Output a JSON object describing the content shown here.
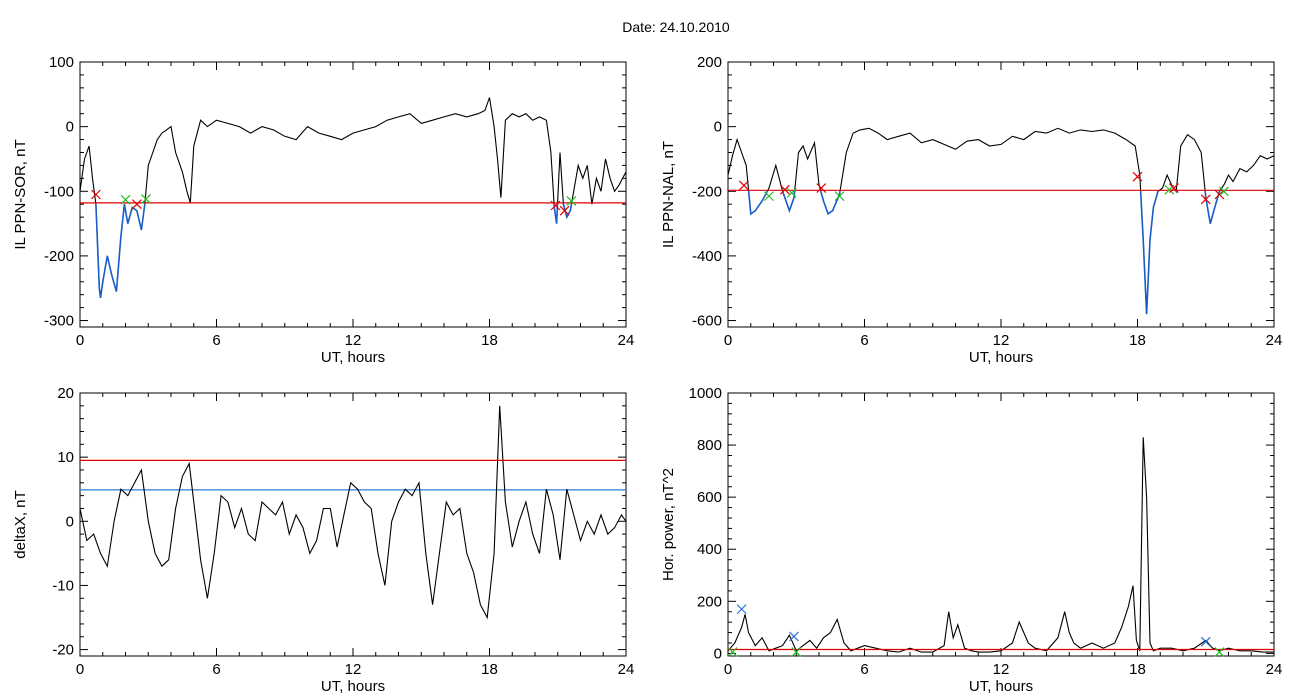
{
  "figure": {
    "title": "Date:  24.10.2010"
  },
  "colors": {
    "trace": "#000000",
    "below_threshold": "#1a5fc8",
    "threshold": "#e00000",
    "secondary_threshold": "#2a7fd4",
    "marker_red": "#e00000",
    "marker_green": "#22bb22",
    "marker_blue": "#2a6fd0"
  },
  "chart_data": [
    {
      "type": "line",
      "ylabel": "IL PPN-SOR, nT",
      "xlabel": "UT, hours",
      "xlim": [
        0,
        24
      ],
      "ylim": [
        -310,
        100
      ],
      "xticks": [
        0,
        6,
        12,
        18,
        24
      ],
      "yticks": [
        100,
        0,
        -100,
        -200,
        -300
      ],
      "threshold": -118,
      "series": [
        {
          "x": [
            0,
            0.2,
            0.4,
            0.55,
            0.7,
            0.85,
            0.9,
            1.0,
            1.2,
            1.4,
            1.6,
            1.8,
            1.95,
            2.1,
            2.3,
            2.5,
            2.7,
            2.85,
            3.0,
            3.2,
            3.4,
            3.6,
            3.8,
            4.0,
            4.2,
            4.5,
            4.7,
            4.85,
            5.0,
            5.3,
            5.6,
            6.0,
            6.5,
            7,
            7.5,
            8,
            8.5,
            9,
            9.5,
            10,
            10.5,
            11,
            11.5,
            12,
            12.5,
            13,
            13.5,
            14,
            14.5,
            15,
            15.5,
            16,
            16.5,
            17,
            17.5,
            17.8,
            18.0,
            18.2,
            18.35,
            18.5,
            18.7,
            19.0,
            19.3,
            19.6,
            19.9,
            20.2,
            20.5,
            20.7,
            20.85,
            20.95,
            21.1,
            21.25,
            21.4,
            21.55,
            21.7,
            21.9,
            22.1,
            22.3,
            22.5,
            22.7,
            22.9,
            23.1,
            23.3,
            23.5,
            23.7,
            23.85,
            24.0
          ],
          "y": [
            -100,
            -50,
            -30,
            -80,
            -120,
            -250,
            -265,
            -240,
            -200,
            -230,
            -255,
            -170,
            -120,
            -150,
            -125,
            -130,
            -160,
            -120,
            -60,
            -40,
            -20,
            -10,
            -5,
            0,
            -40,
            -70,
            -100,
            -118,
            -30,
            10,
            0,
            10,
            5,
            0,
            -10,
            0,
            -5,
            -15,
            -20,
            0,
            -10,
            -15,
            -20,
            -10,
            -5,
            0,
            10,
            15,
            20,
            5,
            10,
            15,
            20,
            15,
            20,
            25,
            45,
            0,
            -50,
            -110,
            10,
            20,
            15,
            20,
            10,
            15,
            10,
            -40,
            -125,
            -150,
            -40,
            -120,
            -140,
            -130,
            -100,
            -60,
            -80,
            -60,
            -120,
            -80,
            -100,
            -50,
            -80,
            -100,
            -90,
            -80,
            -70
          ]
        }
      ],
      "markers": [
        {
          "x": 0.7,
          "y": -105,
          "kind": "red-x"
        },
        {
          "x": 2.0,
          "y": -113,
          "kind": "green-x"
        },
        {
          "x": 2.5,
          "y": -120,
          "kind": "red-x"
        },
        {
          "x": 2.9,
          "y": -112,
          "kind": "green-x"
        },
        {
          "x": 20.9,
          "y": -122,
          "kind": "red-x"
        },
        {
          "x": 21.3,
          "y": -130,
          "kind": "red-x"
        },
        {
          "x": 21.6,
          "y": -115,
          "kind": "green-x"
        }
      ]
    },
    {
      "type": "line",
      "ylabel": "IL PPN-NAL, nT",
      "xlabel": "UT, hours",
      "xlim": [
        0,
        24
      ],
      "ylim": [
        -620,
        200
      ],
      "xticks": [
        0,
        6,
        12,
        18,
        24
      ],
      "yticks": [
        200,
        0,
        -200,
        -400,
        -600
      ],
      "threshold": -197,
      "series": [
        {
          "x": [
            0,
            0.2,
            0.4,
            0.6,
            0.8,
            1.0,
            1.2,
            1.5,
            1.8,
            2.1,
            2.4,
            2.7,
            2.9,
            3.1,
            3.3,
            3.5,
            3.8,
            4.0,
            4.2,
            4.4,
            4.6,
            4.9,
            5.2,
            5.5,
            5.8,
            6.2,
            6.6,
            7,
            7.5,
            8,
            8.5,
            9,
            9.5,
            10,
            10.5,
            11,
            11.5,
            12,
            12.5,
            13,
            13.5,
            14,
            14.5,
            15,
            15.5,
            16,
            16.5,
            17,
            17.5,
            17.9,
            18.1,
            18.25,
            18.4,
            18.55,
            18.7,
            18.9,
            19.1,
            19.3,
            19.5,
            19.7,
            19.9,
            20.2,
            20.5,
            20.8,
            21.0,
            21.2,
            21.4,
            21.6,
            21.8,
            22.0,
            22.2,
            22.5,
            22.8,
            23.1,
            23.4,
            23.7,
            24.0
          ],
          "y": [
            -150,
            -90,
            -40,
            -80,
            -120,
            -270,
            -260,
            -230,
            -190,
            -120,
            -200,
            -260,
            -220,
            -80,
            -60,
            -100,
            -50,
            -180,
            -230,
            -270,
            -260,
            -210,
            -80,
            -20,
            -10,
            -5,
            -20,
            -40,
            -30,
            -20,
            -50,
            -40,
            -55,
            -70,
            -45,
            -40,
            -60,
            -55,
            -30,
            -40,
            -15,
            -20,
            -5,
            -20,
            -10,
            -15,
            -10,
            -20,
            -40,
            -60,
            -150,
            -350,
            -580,
            -350,
            -250,
            -200,
            -190,
            -150,
            -180,
            -200,
            -60,
            -25,
            -40,
            -80,
            -220,
            -300,
            -250,
            -200,
            -180,
            -150,
            -170,
            -130,
            -140,
            -120,
            -90,
            -100,
            -90
          ]
        }
      ],
      "markers": [
        {
          "x": 0.7,
          "y": -182,
          "kind": "red-x"
        },
        {
          "x": 1.8,
          "y": -215,
          "kind": "green-x"
        },
        {
          "x": 2.5,
          "y": -195,
          "kind": "red-x"
        },
        {
          "x": 2.8,
          "y": -205,
          "kind": "green-x"
        },
        {
          "x": 4.1,
          "y": -190,
          "kind": "red-x"
        },
        {
          "x": 4.9,
          "y": -215,
          "kind": "green-x"
        },
        {
          "x": 18.0,
          "y": -155,
          "kind": "red-x"
        },
        {
          "x": 19.4,
          "y": -195,
          "kind": "green-x"
        },
        {
          "x": 19.6,
          "y": -190,
          "kind": "red-x"
        },
        {
          "x": 21.0,
          "y": -225,
          "kind": "red-x"
        },
        {
          "x": 21.6,
          "y": -210,
          "kind": "red-x"
        },
        {
          "x": 21.8,
          "y": -200,
          "kind": "green-x"
        }
      ]
    },
    {
      "type": "line",
      "ylabel": "deltaX, nT",
      "xlabel": "UT, hours",
      "xlim": [
        0,
        24
      ],
      "ylim": [
        -21,
        20
      ],
      "xticks": [
        0,
        6,
        12,
        18,
        24
      ],
      "yticks": [
        20,
        10,
        0,
        -10,
        -20
      ],
      "threshold": 9.5,
      "secondary_threshold": 4.9,
      "series": [
        {
          "x": [
            0,
            0.3,
            0.6,
            0.9,
            1.2,
            1.5,
            1.8,
            2.1,
            2.4,
            2.7,
            3.0,
            3.3,
            3.6,
            3.9,
            4.2,
            4.5,
            4.8,
            5.0,
            5.3,
            5.6,
            5.9,
            6.2,
            6.5,
            6.8,
            7.1,
            7.4,
            7.7,
            8.0,
            8.3,
            8.6,
            8.9,
            9.2,
            9.5,
            9.8,
            10.1,
            10.4,
            10.7,
            11.0,
            11.3,
            11.6,
            11.9,
            12.2,
            12.5,
            12.8,
            13.1,
            13.4,
            13.7,
            14.0,
            14.3,
            14.6,
            14.9,
            15.2,
            15.5,
            15.8,
            16.1,
            16.4,
            16.7,
            17.0,
            17.3,
            17.6,
            17.9,
            18.2,
            18.45,
            18.7,
            19.0,
            19.3,
            19.6,
            19.9,
            20.2,
            20.5,
            20.8,
            21.1,
            21.4,
            21.7,
            22.0,
            22.3,
            22.6,
            22.9,
            23.2,
            23.5,
            23.8,
            24.0
          ],
          "y": [
            2,
            -3,
            -2,
            -5,
            -7,
            0,
            5,
            4,
            6,
            8,
            0,
            -5,
            -7,
            -6,
            2,
            7,
            9,
            3,
            -6,
            -12,
            -5,
            4,
            3,
            -1,
            2,
            -2,
            -3,
            3,
            2,
            1,
            3,
            -2,
            1,
            -1,
            -5,
            -3,
            2,
            2,
            -4,
            1,
            6,
            5,
            3,
            2,
            -5,
            -10,
            0,
            3,
            5,
            4,
            6,
            -5,
            -13,
            -5,
            3,
            1,
            2,
            -5,
            -8,
            -13,
            -15,
            -5,
            18,
            3,
            -4,
            0,
            3,
            -2,
            -5,
            5,
            1,
            -6,
            5,
            1,
            -3,
            0,
            -2,
            1,
            -2,
            -1,
            1,
            0
          ]
        }
      ],
      "markers": []
    },
    {
      "type": "line",
      "ylabel": "Hor. power, nT^2",
      "xlabel": "UT, hours",
      "xlim": [
        0,
        24
      ],
      "ylim": [
        -10,
        1000
      ],
      "xticks": [
        0,
        6,
        12,
        18,
        24
      ],
      "yticks": [
        1000,
        800,
        600,
        400,
        200,
        0
      ],
      "threshold": 15,
      "series": [
        {
          "x": [
            0,
            0.3,
            0.6,
            0.75,
            0.9,
            1.2,
            1.5,
            1.8,
            2.1,
            2.4,
            2.7,
            3.0,
            3.3,
            3.6,
            3.9,
            4.2,
            4.5,
            4.8,
            5.1,
            5.4,
            5.7,
            6.0,
            6.5,
            7.0,
            7.5,
            8.0,
            8.5,
            9.0,
            9.5,
            9.7,
            9.9,
            10.1,
            10.4,
            10.7,
            11.0,
            11.5,
            12.0,
            12.5,
            12.8,
            13.0,
            13.2,
            13.5,
            14.0,
            14.5,
            14.8,
            15.0,
            15.2,
            15.5,
            16.0,
            16.5,
            17.0,
            17.3,
            17.6,
            17.8,
            17.95,
            18.1,
            18.25,
            18.4,
            18.55,
            18.7,
            19.0,
            19.5,
            20.0,
            20.5,
            21.0,
            21.3,
            21.6,
            22.0,
            22.5,
            23.0,
            23.5,
            24.0
          ],
          "y": [
            10,
            40,
            100,
            150,
            80,
            30,
            60,
            10,
            20,
            30,
            70,
            10,
            30,
            50,
            20,
            60,
            80,
            130,
            40,
            10,
            20,
            30,
            20,
            10,
            5,
            20,
            5,
            5,
            30,
            160,
            60,
            110,
            20,
            10,
            5,
            5,
            10,
            40,
            120,
            80,
            40,
            20,
            10,
            60,
            160,
            80,
            40,
            20,
            40,
            20,
            40,
            100,
            180,
            260,
            50,
            10,
            830,
            600,
            40,
            10,
            20,
            20,
            10,
            20,
            50,
            20,
            10,
            20,
            10,
            10,
            5,
            5
          ]
        }
      ],
      "markers": [
        {
          "x": 0.6,
          "y": 170,
          "kind": "blue-x"
        },
        {
          "x": 2.9,
          "y": 65,
          "kind": "blue-x"
        },
        {
          "x": 21.0,
          "y": 45,
          "kind": "blue-x"
        },
        {
          "x": 0.2,
          "y": 5,
          "kind": "green-x"
        },
        {
          "x": 3.0,
          "y": 5,
          "kind": "green-x"
        },
        {
          "x": 21.6,
          "y": 5,
          "kind": "green-x"
        }
      ]
    }
  ]
}
